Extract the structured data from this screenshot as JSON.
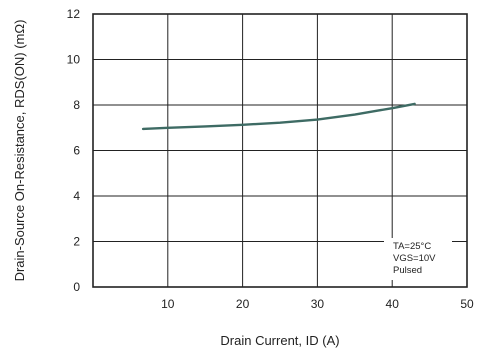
{
  "chart_data": {
    "type": "line",
    "title": "",
    "xlabel": "Drain Current, ID (A)",
    "ylabel": "Drain-Source On-Resistance, RDS(ON) (mΩ)",
    "xlim": [
      0,
      50
    ],
    "ylim": [
      0,
      12
    ],
    "x_ticks": [
      10,
      20,
      30,
      40,
      50
    ],
    "y_ticks": [
      0,
      2,
      4,
      6,
      8,
      10,
      12
    ],
    "grid": true,
    "series": [
      {
        "x": [
          6.7,
          10,
          15,
          20,
          25,
          30,
          35,
          38,
          40,
          43
        ],
        "y": [
          6.95,
          7.0,
          7.06,
          7.13,
          7.22,
          7.36,
          7.58,
          7.75,
          7.86,
          8.05
        ]
      }
    ],
    "annotation": [
      "TA=25°C",
      "VGS=10V",
      "Pulsed"
    ],
    "colors": {
      "line": "#3e6b64",
      "grid": "#222222"
    }
  }
}
